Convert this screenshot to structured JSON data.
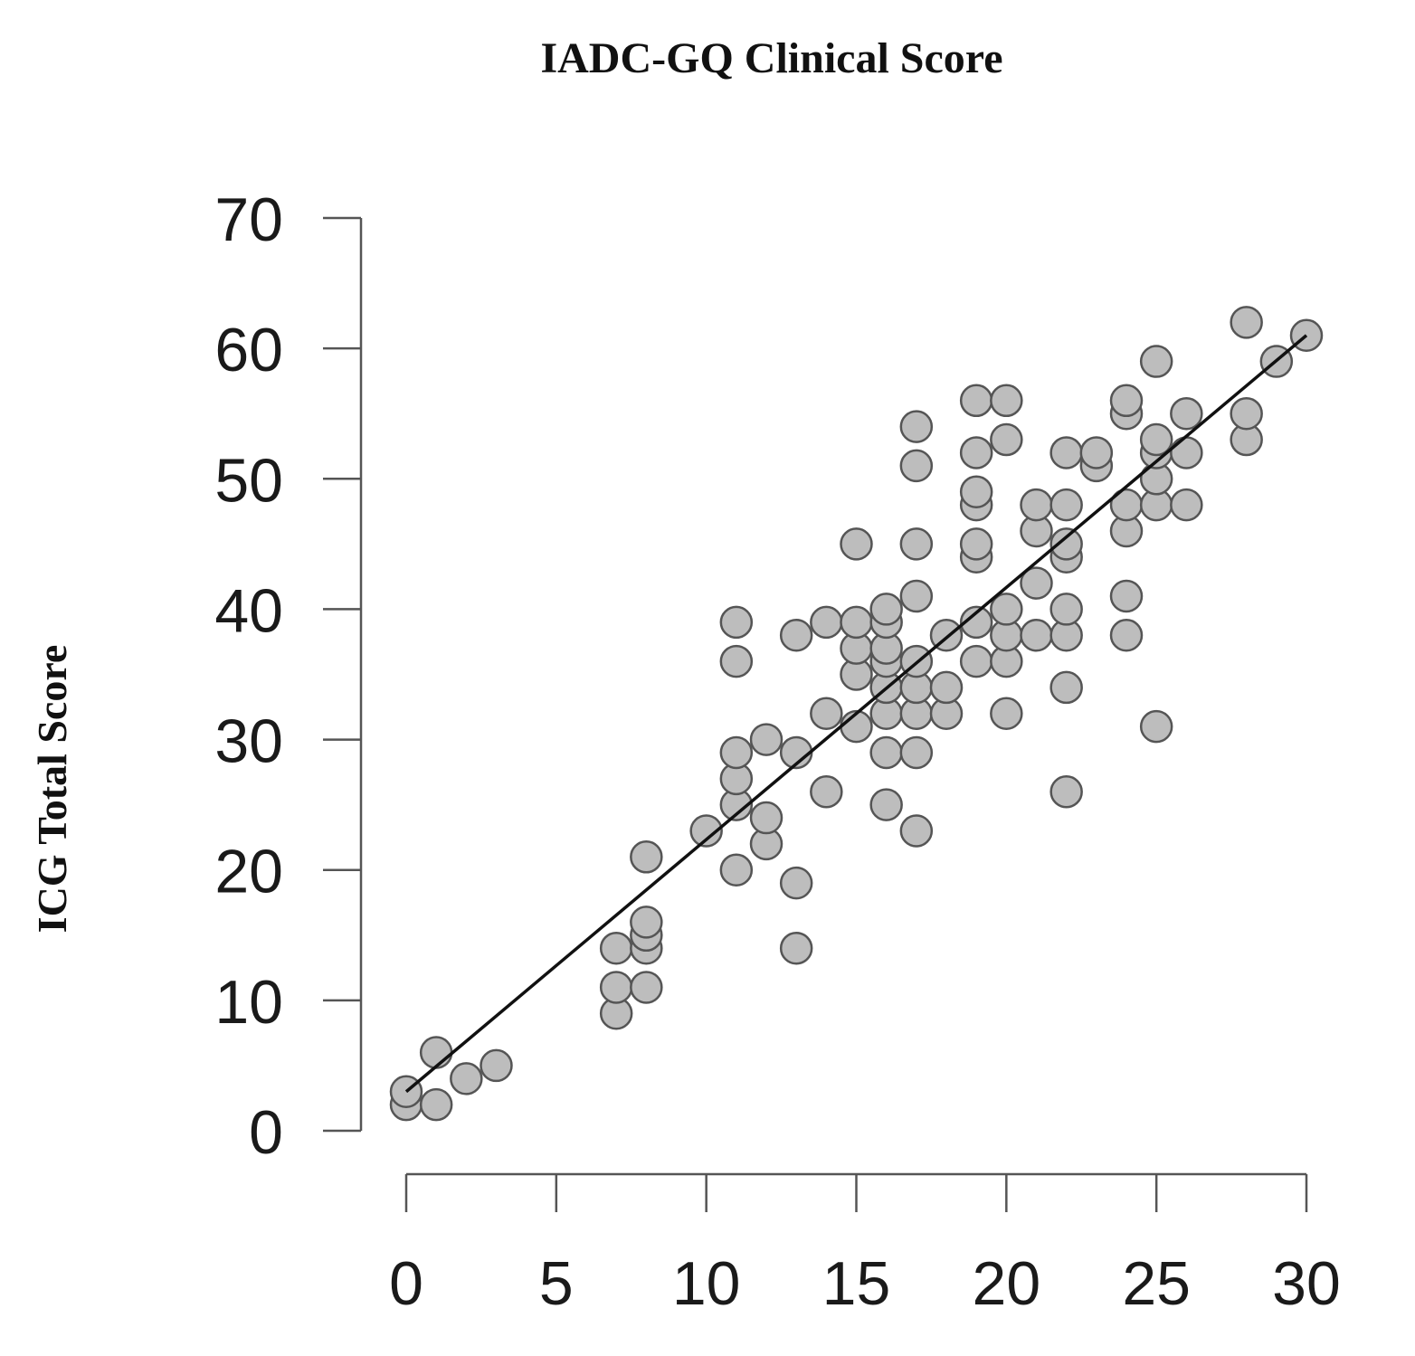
{
  "chart_data": {
    "type": "scatter",
    "title": "IADC-GQ Clinical Score",
    "xlabel": "",
    "ylabel": "ICG Total Score",
    "xlim": [
      0,
      30
    ],
    "ylim": [
      0,
      70
    ],
    "x_ticks": [
      "0",
      "5",
      "10",
      "15",
      "20",
      "25",
      "30"
    ],
    "y_ticks": [
      "0",
      "10",
      "20",
      "30",
      "40",
      "50",
      "60",
      "70"
    ],
    "grid": false,
    "legend": "none",
    "point_fill": "#bdbdbd",
    "point_edge": "#555555",
    "line_color": "#111111",
    "fit_line": {
      "x": [
        0,
        30
      ],
      "y": [
        3,
        61
      ]
    },
    "points": [
      {
        "x": 0,
        "y": 2
      },
      {
        "x": 0,
        "y": 3
      },
      {
        "x": 1,
        "y": 2
      },
      {
        "x": 1,
        "y": 6
      },
      {
        "x": 2,
        "y": 4
      },
      {
        "x": 3,
        "y": 5
      },
      {
        "x": 7,
        "y": 9
      },
      {
        "x": 7,
        "y": 11
      },
      {
        "x": 7,
        "y": 14
      },
      {
        "x": 8,
        "y": 11
      },
      {
        "x": 8,
        "y": 14
      },
      {
        "x": 8,
        "y": 15
      },
      {
        "x": 8,
        "y": 16
      },
      {
        "x": 8,
        "y": 21
      },
      {
        "x": 10,
        "y": 23
      },
      {
        "x": 11,
        "y": 20
      },
      {
        "x": 11,
        "y": 25
      },
      {
        "x": 11,
        "y": 27
      },
      {
        "x": 11,
        "y": 29
      },
      {
        "x": 11,
        "y": 36
      },
      {
        "x": 11,
        "y": 39
      },
      {
        "x": 12,
        "y": 22
      },
      {
        "x": 12,
        "y": 24
      },
      {
        "x": 12,
        "y": 30
      },
      {
        "x": 13,
        "y": 14
      },
      {
        "x": 13,
        "y": 19
      },
      {
        "x": 13,
        "y": 29
      },
      {
        "x": 13,
        "y": 38
      },
      {
        "x": 14,
        "y": 26
      },
      {
        "x": 14,
        "y": 32
      },
      {
        "x": 14,
        "y": 39
      },
      {
        "x": 15,
        "y": 31
      },
      {
        "x": 15,
        "y": 35
      },
      {
        "x": 15,
        "y": 37
      },
      {
        "x": 15,
        "y": 39
      },
      {
        "x": 15,
        "y": 45
      },
      {
        "x": 16,
        "y": 25
      },
      {
        "x": 16,
        "y": 29
      },
      {
        "x": 16,
        "y": 32
      },
      {
        "x": 16,
        "y": 34
      },
      {
        "x": 16,
        "y": 36
      },
      {
        "x": 16,
        "y": 37
      },
      {
        "x": 16,
        "y": 39
      },
      {
        "x": 16,
        "y": 40
      },
      {
        "x": 17,
        "y": 23
      },
      {
        "x": 17,
        "y": 29
      },
      {
        "x": 17,
        "y": 32
      },
      {
        "x": 17,
        "y": 34
      },
      {
        "x": 17,
        "y": 36
      },
      {
        "x": 17,
        "y": 41
      },
      {
        "x": 17,
        "y": 45
      },
      {
        "x": 17,
        "y": 51
      },
      {
        "x": 17,
        "y": 54
      },
      {
        "x": 18,
        "y": 32
      },
      {
        "x": 18,
        "y": 34
      },
      {
        "x": 18,
        "y": 38
      },
      {
        "x": 19,
        "y": 36
      },
      {
        "x": 19,
        "y": 39
      },
      {
        "x": 19,
        "y": 44
      },
      {
        "x": 19,
        "y": 45
      },
      {
        "x": 19,
        "y": 48
      },
      {
        "x": 19,
        "y": 49
      },
      {
        "x": 19,
        "y": 52
      },
      {
        "x": 19,
        "y": 56
      },
      {
        "x": 20,
        "y": 32
      },
      {
        "x": 20,
        "y": 36
      },
      {
        "x": 20,
        "y": 38
      },
      {
        "x": 20,
        "y": 40
      },
      {
        "x": 20,
        "y": 53
      },
      {
        "x": 20,
        "y": 56
      },
      {
        "x": 21,
        "y": 38
      },
      {
        "x": 21,
        "y": 42
      },
      {
        "x": 21,
        "y": 46
      },
      {
        "x": 21,
        "y": 48
      },
      {
        "x": 22,
        "y": 26
      },
      {
        "x": 22,
        "y": 34
      },
      {
        "x": 22,
        "y": 38
      },
      {
        "x": 22,
        "y": 40
      },
      {
        "x": 22,
        "y": 44
      },
      {
        "x": 22,
        "y": 45
      },
      {
        "x": 22,
        "y": 48
      },
      {
        "x": 22,
        "y": 52
      },
      {
        "x": 23,
        "y": 51
      },
      {
        "x": 23,
        "y": 52
      },
      {
        "x": 24,
        "y": 38
      },
      {
        "x": 24,
        "y": 41
      },
      {
        "x": 24,
        "y": 46
      },
      {
        "x": 24,
        "y": 48
      },
      {
        "x": 24,
        "y": 55
      },
      {
        "x": 24,
        "y": 56
      },
      {
        "x": 25,
        "y": 31
      },
      {
        "x": 25,
        "y": 48
      },
      {
        "x": 25,
        "y": 50
      },
      {
        "x": 25,
        "y": 52
      },
      {
        "x": 25,
        "y": 53
      },
      {
        "x": 25,
        "y": 59
      },
      {
        "x": 26,
        "y": 48
      },
      {
        "x": 26,
        "y": 52
      },
      {
        "x": 26,
        "y": 55
      },
      {
        "x": 28,
        "y": 53
      },
      {
        "x": 28,
        "y": 55
      },
      {
        "x": 28,
        "y": 62
      },
      {
        "x": 29,
        "y": 59
      },
      {
        "x": 30,
        "y": 61
      }
    ]
  }
}
